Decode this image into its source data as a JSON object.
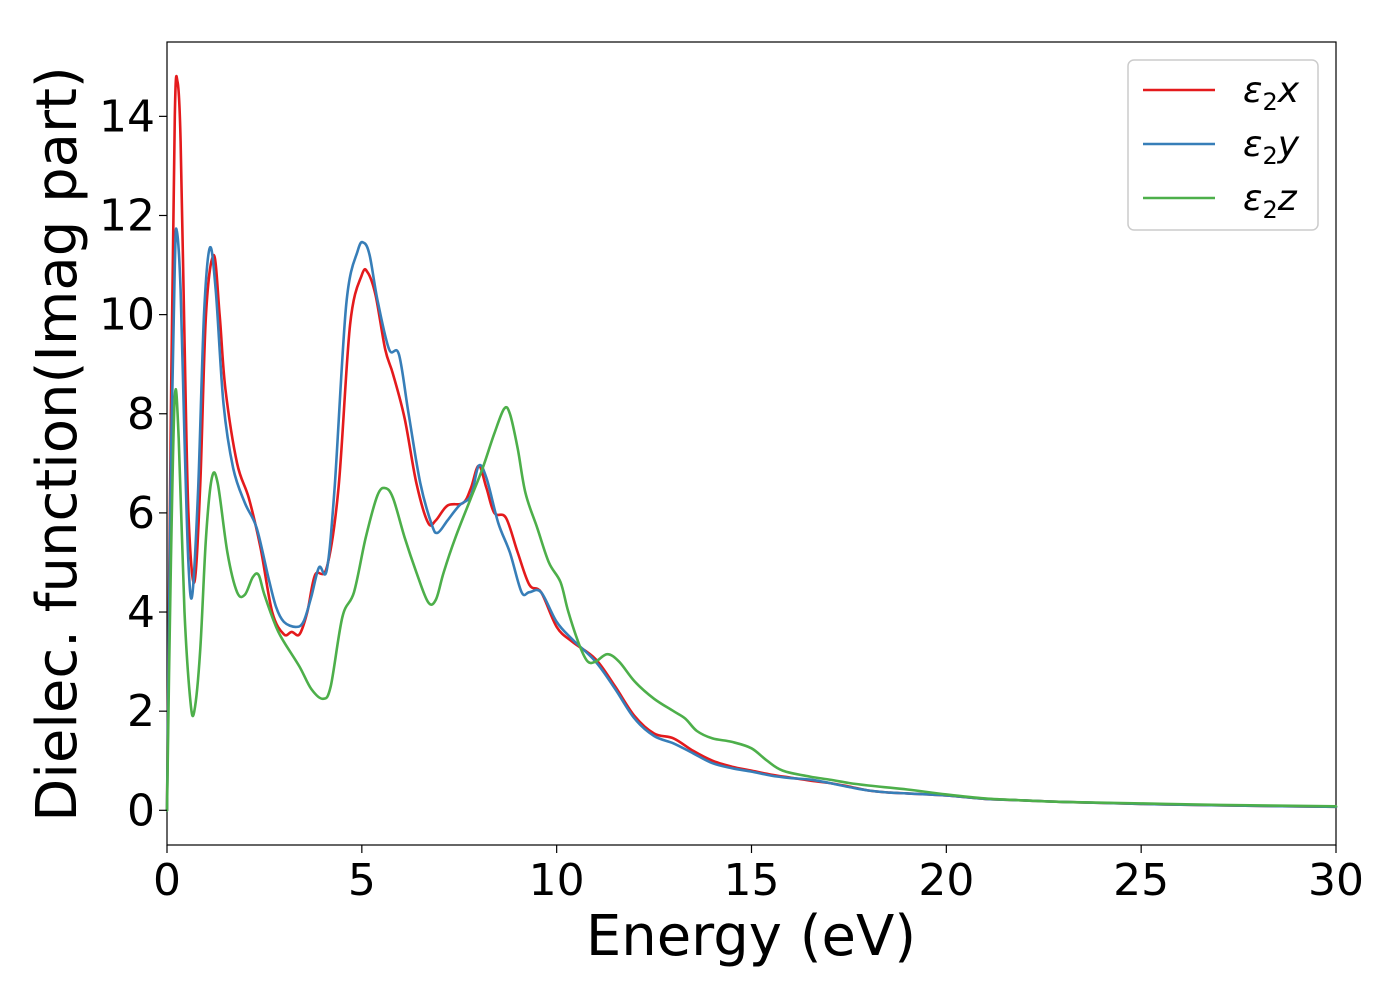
{
  "chart_data": {
    "type": "line",
    "title": "",
    "xlabel": "Energy (eV)",
    "ylabel": "Dielec. function(Imag part)",
    "xlim": [
      0,
      30
    ],
    "ylim": [
      -0.7,
      15.5
    ],
    "xticks": [
      0,
      5,
      10,
      15,
      20,
      25,
      30
    ],
    "yticks": [
      0,
      2,
      4,
      6,
      8,
      10,
      12,
      14
    ],
    "grid": false,
    "legend_position": "top-right",
    "series": [
      {
        "name": "ε₂x",
        "legend_base": "ε",
        "legend_sub": "2",
        "legend_suffix": "x",
        "color": "#e41a1c",
        "points": [
          [
            0,
            0
          ],
          [
            0.1,
            8.0
          ],
          [
            0.2,
            14.0
          ],
          [
            0.27,
            14.7
          ],
          [
            0.35,
            13.5
          ],
          [
            0.45,
            9.5
          ],
          [
            0.55,
            6.0
          ],
          [
            0.7,
            4.6
          ],
          [
            0.85,
            6.5
          ],
          [
            1.0,
            10.0
          ],
          [
            1.2,
            11.2
          ],
          [
            1.35,
            10.0
          ],
          [
            1.5,
            8.5
          ],
          [
            1.8,
            7.0
          ],
          [
            2.1,
            6.3
          ],
          [
            2.4,
            5.3
          ],
          [
            2.7,
            4.0
          ],
          [
            3.0,
            3.55
          ],
          [
            3.2,
            3.6
          ],
          [
            3.4,
            3.55
          ],
          [
            3.6,
            4.0
          ],
          [
            3.8,
            4.75
          ],
          [
            4.1,
            4.9
          ],
          [
            4.4,
            6.5
          ],
          [
            4.7,
            9.8
          ],
          [
            5.0,
            10.8
          ],
          [
            5.15,
            10.85
          ],
          [
            5.35,
            10.4
          ],
          [
            5.6,
            9.3
          ],
          [
            5.8,
            8.8
          ],
          [
            6.1,
            7.9
          ],
          [
            6.4,
            6.6
          ],
          [
            6.7,
            5.8
          ],
          [
            6.9,
            5.85
          ],
          [
            7.2,
            6.15
          ],
          [
            7.6,
            6.2
          ],
          [
            7.8,
            6.5
          ],
          [
            8.0,
            6.95
          ],
          [
            8.2,
            6.5
          ],
          [
            8.4,
            6.0
          ],
          [
            8.7,
            5.9
          ],
          [
            9.0,
            5.2
          ],
          [
            9.3,
            4.55
          ],
          [
            9.6,
            4.4
          ],
          [
            10.0,
            3.7
          ],
          [
            10.4,
            3.4
          ],
          [
            11.0,
            3.05
          ],
          [
            11.5,
            2.5
          ],
          [
            12.0,
            1.9
          ],
          [
            12.5,
            1.55
          ],
          [
            13.0,
            1.45
          ],
          [
            13.5,
            1.2
          ],
          [
            14.0,
            1.0
          ],
          [
            14.5,
            0.88
          ],
          [
            15.0,
            0.8
          ],
          [
            15.5,
            0.72
          ],
          [
            16.0,
            0.66
          ],
          [
            16.5,
            0.6
          ],
          [
            17.0,
            0.55
          ],
          [
            17.5,
            0.48
          ],
          [
            18.0,
            0.4
          ],
          [
            18.5,
            0.36
          ],
          [
            19.0,
            0.34
          ],
          [
            20.0,
            0.3
          ],
          [
            21.0,
            0.23
          ],
          [
            22.0,
            0.2
          ],
          [
            23.0,
            0.17
          ],
          [
            25.0,
            0.13
          ],
          [
            27.0,
            0.1
          ],
          [
            30.0,
            0.07
          ]
        ]
      },
      {
        "name": "ε₂y",
        "legend_base": "ε",
        "legend_sub": "2",
        "legend_suffix": "y",
        "color": "#377eb8",
        "points": [
          [
            0,
            0
          ],
          [
            0.1,
            7.0
          ],
          [
            0.2,
            11.0
          ],
          [
            0.25,
            11.7
          ],
          [
            0.35,
            10.5
          ],
          [
            0.45,
            7.5
          ],
          [
            0.55,
            5.0
          ],
          [
            0.65,
            4.35
          ],
          [
            0.8,
            6.5
          ],
          [
            0.95,
            10.0
          ],
          [
            1.1,
            11.35
          ],
          [
            1.25,
            10.5
          ],
          [
            1.45,
            8.2
          ],
          [
            1.7,
            6.9
          ],
          [
            2.0,
            6.2
          ],
          [
            2.3,
            5.7
          ],
          [
            2.6,
            4.7
          ],
          [
            2.8,
            4.1
          ],
          [
            3.0,
            3.8
          ],
          [
            3.3,
            3.7
          ],
          [
            3.5,
            3.8
          ],
          [
            3.7,
            4.3
          ],
          [
            3.9,
            4.9
          ],
          [
            4.1,
            4.85
          ],
          [
            4.3,
            6.5
          ],
          [
            4.6,
            10.2
          ],
          [
            4.9,
            11.3
          ],
          [
            5.05,
            11.45
          ],
          [
            5.2,
            11.2
          ],
          [
            5.4,
            10.3
          ],
          [
            5.7,
            9.3
          ],
          [
            5.95,
            9.2
          ],
          [
            6.2,
            8.0
          ],
          [
            6.5,
            6.6
          ],
          [
            6.8,
            5.75
          ],
          [
            6.95,
            5.6
          ],
          [
            7.2,
            5.85
          ],
          [
            7.5,
            6.15
          ],
          [
            7.8,
            6.35
          ],
          [
            8.0,
            6.95
          ],
          [
            8.2,
            6.7
          ],
          [
            8.5,
            5.8
          ],
          [
            8.8,
            5.2
          ],
          [
            9.1,
            4.4
          ],
          [
            9.3,
            4.4
          ],
          [
            9.6,
            4.4
          ],
          [
            10.0,
            3.8
          ],
          [
            10.4,
            3.45
          ],
          [
            11.0,
            3.0
          ],
          [
            11.5,
            2.45
          ],
          [
            12.0,
            1.85
          ],
          [
            12.5,
            1.5
          ],
          [
            13.0,
            1.35
          ],
          [
            13.5,
            1.15
          ],
          [
            14.0,
            0.95
          ],
          [
            14.5,
            0.85
          ],
          [
            15.0,
            0.78
          ],
          [
            15.5,
            0.7
          ],
          [
            16.0,
            0.65
          ],
          [
            16.5,
            0.62
          ],
          [
            17.0,
            0.55
          ],
          [
            17.5,
            0.47
          ],
          [
            18.0,
            0.4
          ],
          [
            18.5,
            0.36
          ],
          [
            19.0,
            0.34
          ],
          [
            20.0,
            0.3
          ],
          [
            21.0,
            0.23
          ],
          [
            22.0,
            0.2
          ],
          [
            23.0,
            0.17
          ],
          [
            25.0,
            0.13
          ],
          [
            27.0,
            0.1
          ],
          [
            30.0,
            0.07
          ]
        ]
      },
      {
        "name": "ε₂z",
        "legend_base": "ε",
        "legend_sub": "2",
        "legend_suffix": "z",
        "color": "#4daf4a",
        "points": [
          [
            0,
            0
          ],
          [
            0.1,
            5.0
          ],
          [
            0.2,
            8.35
          ],
          [
            0.3,
            7.5
          ],
          [
            0.45,
            4.0
          ],
          [
            0.6,
            2.2
          ],
          [
            0.7,
            2.0
          ],
          [
            0.85,
            3.2
          ],
          [
            1.0,
            5.5
          ],
          [
            1.15,
            6.7
          ],
          [
            1.3,
            6.6
          ],
          [
            1.55,
            5.2
          ],
          [
            1.8,
            4.4
          ],
          [
            2.0,
            4.35
          ],
          [
            2.2,
            4.7
          ],
          [
            2.35,
            4.75
          ],
          [
            2.5,
            4.35
          ],
          [
            2.8,
            3.7
          ],
          [
            3.0,
            3.4
          ],
          [
            3.4,
            2.9
          ],
          [
            3.7,
            2.45
          ],
          [
            4.0,
            2.25
          ],
          [
            4.2,
            2.5
          ],
          [
            4.5,
            3.9
          ],
          [
            4.8,
            4.4
          ],
          [
            5.1,
            5.5
          ],
          [
            5.4,
            6.35
          ],
          [
            5.6,
            6.5
          ],
          [
            5.8,
            6.3
          ],
          [
            6.1,
            5.5
          ],
          [
            6.4,
            4.8
          ],
          [
            6.7,
            4.2
          ],
          [
            6.9,
            4.25
          ],
          [
            7.1,
            4.8
          ],
          [
            7.4,
            5.5
          ],
          [
            7.8,
            6.3
          ],
          [
            8.1,
            6.9
          ],
          [
            8.4,
            7.6
          ],
          [
            8.65,
            8.1
          ],
          [
            8.8,
            8.0
          ],
          [
            9.0,
            7.3
          ],
          [
            9.2,
            6.4
          ],
          [
            9.5,
            5.7
          ],
          [
            9.8,
            5.0
          ],
          [
            10.1,
            4.6
          ],
          [
            10.3,
            4.0
          ],
          [
            10.6,
            3.3
          ],
          [
            10.8,
            3.0
          ],
          [
            11.0,
            3.0
          ],
          [
            11.3,
            3.15
          ],
          [
            11.6,
            3.0
          ],
          [
            12.0,
            2.6
          ],
          [
            12.5,
            2.25
          ],
          [
            13.0,
            2.0
          ],
          [
            13.3,
            1.85
          ],
          [
            13.6,
            1.6
          ],
          [
            14.0,
            1.45
          ],
          [
            14.5,
            1.38
          ],
          [
            15.0,
            1.25
          ],
          [
            15.4,
            1.0
          ],
          [
            15.8,
            0.8
          ],
          [
            16.5,
            0.68
          ],
          [
            17.0,
            0.62
          ],
          [
            17.5,
            0.55
          ],
          [
            18.0,
            0.5
          ],
          [
            19.0,
            0.42
          ],
          [
            20.0,
            0.32
          ],
          [
            21.0,
            0.24
          ],
          [
            22.0,
            0.2
          ],
          [
            23.0,
            0.17
          ],
          [
            25.0,
            0.14
          ],
          [
            27.0,
            0.11
          ],
          [
            30.0,
            0.08
          ]
        ]
      }
    ]
  }
}
